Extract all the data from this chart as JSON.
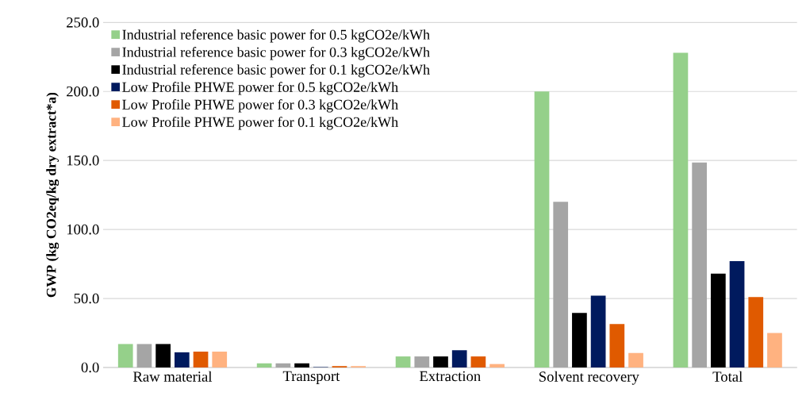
{
  "chart_data": {
    "type": "bar",
    "ylabel": "GWP (kg CO2eq/kg dry extract*a)",
    "categories": [
      "Raw material",
      "Transport",
      "Extraction",
      "Solvent recovery",
      "Total"
    ],
    "series": [
      {
        "name": "Industrial reference basic power for 0.5 kgCO2e/kWh",
        "color": "#95d08a",
        "values": [
          17,
          3,
          8,
          200,
          228
        ]
      },
      {
        "name": "Industrial reference basic power for 0.3 kgCO2e/kWh",
        "color": "#a5a5a5",
        "values": [
          17,
          3,
          8,
          120,
          148.5
        ]
      },
      {
        "name": "Industrial reference basic power for 0.1 kgCO2e/kWh",
        "color": "#000000",
        "values": [
          17,
          3,
          8,
          39.5,
          68
        ]
      },
      {
        "name": "Low Profile PHWE power for 0.5 kgCO2e/kWh",
        "color": "#001a5e",
        "values": [
          11,
          0.3,
          12.5,
          52,
          77
        ]
      },
      {
        "name": "Low Profile PHWE power for 0.3 kgCO2e/kWh",
        "color": "#e05a00",
        "values": [
          11.5,
          1,
          8,
          31.5,
          51
        ]
      },
      {
        "name": "Low Profile PHWE power for 0.1 kgCO2e/kWh",
        "color": "#ffb280",
        "values": [
          11.5,
          1,
          2.5,
          10.5,
          25
        ]
      }
    ],
    "ylim": [
      0,
      250
    ],
    "yticks": [
      {
        "value": 0,
        "label": "0.0"
      },
      {
        "value": 50,
        "label": "50.0"
      },
      {
        "value": 100,
        "label": "100.0"
      },
      {
        "value": 150,
        "label": "150.0"
      },
      {
        "value": 200,
        "label": "200.0"
      },
      {
        "value": 250,
        "label": "250.0"
      }
    ],
    "grid": "y",
    "legend": "top left"
  }
}
